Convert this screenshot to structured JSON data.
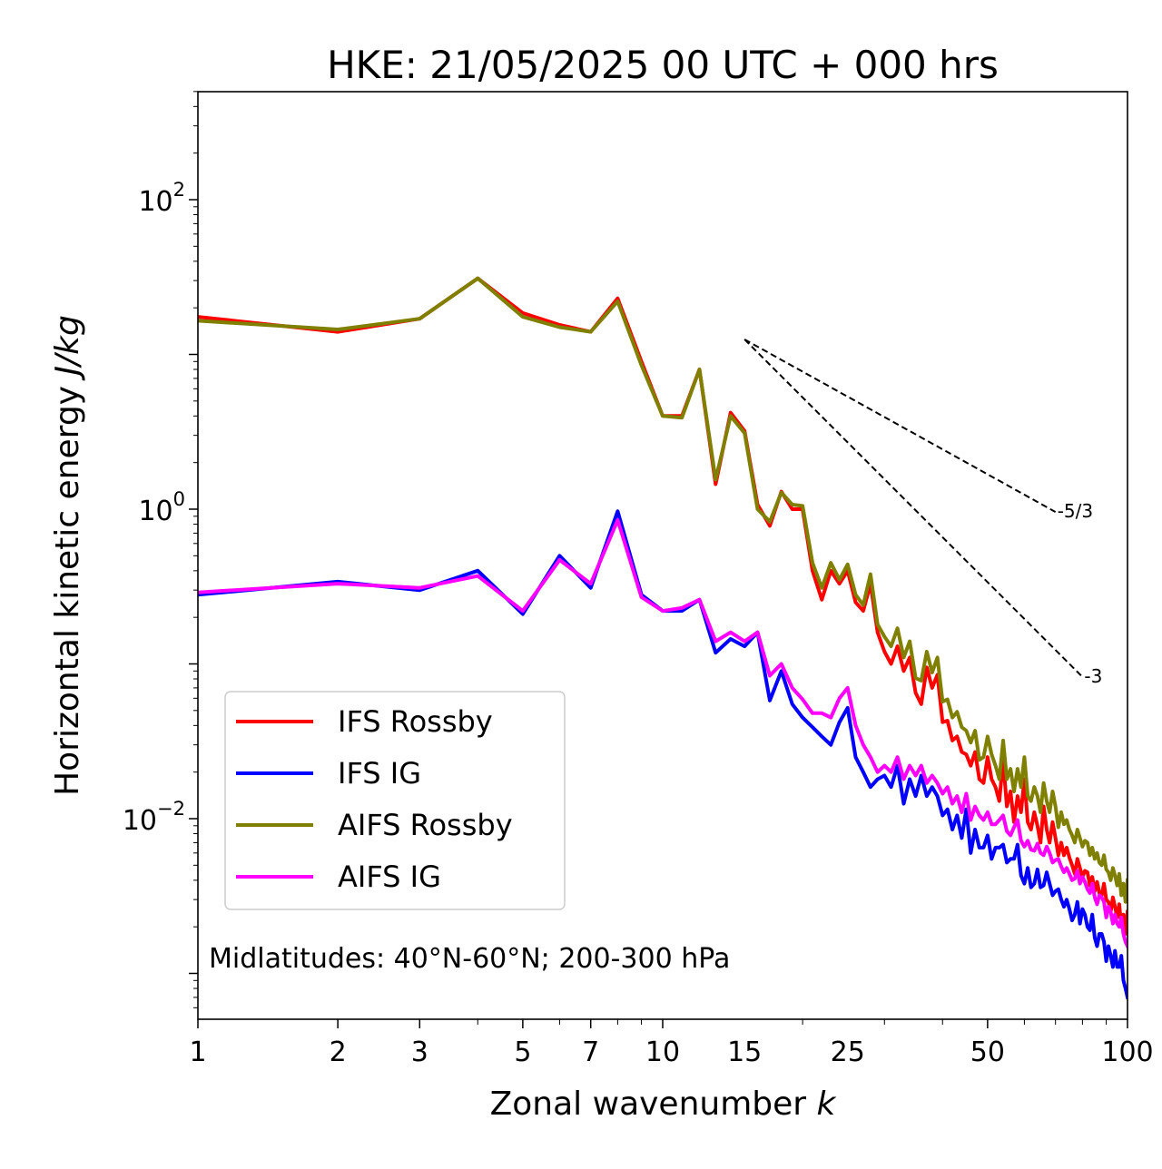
{
  "chart_data": {
    "type": "line",
    "title": "HKE: 21/05/2025 00 UTC + 000 hrs",
    "xlabel": "Zonal wavenumber",
    "xlabel_var": "k",
    "ylabel": "Horizontal kinetic energy",
    "ylabel_units": "J/kg",
    "xscale": "log",
    "yscale": "log",
    "xlim": [
      1,
      100
    ],
    "ylim": [
      0.0005,
      800
    ],
    "xticks": [
      {
        "value": 1,
        "label": "1"
      },
      {
        "value": 2,
        "label": "2"
      },
      {
        "value": 3,
        "label": "3"
      },
      {
        "value": 5,
        "label": "5"
      },
      {
        "value": 7,
        "label": "7"
      },
      {
        "value": 10,
        "label": "10"
      },
      {
        "value": 15,
        "label": "15"
      },
      {
        "value": 25,
        "label": "25"
      },
      {
        "value": 50,
        "label": "50"
      },
      {
        "value": 100,
        "label": "100"
      }
    ],
    "yticks": [
      {
        "value": 100,
        "base": "10",
        "exp": "2"
      },
      {
        "value": 1,
        "base": "10",
        "exp": "0"
      },
      {
        "value": 0.01,
        "base": "10",
        "exp": "−2"
      }
    ],
    "annotation": "Midlatitudes: 40°N-60°N; 200-300 hPa",
    "legend_position": "lower-left",
    "reference_lines": [
      {
        "label": "-5/3",
        "x0": 15,
        "y0": 12.5,
        "x1": 70,
        "slope": -1.6667
      },
      {
        "label": "-3",
        "x0": 15,
        "y0": 12.5,
        "x1": 80,
        "slope": -3
      }
    ],
    "x": [
      1,
      2,
      3,
      4,
      5,
      6,
      7,
      8,
      9,
      10,
      11,
      12,
      13,
      14,
      15,
      16,
      17,
      18,
      19,
      20,
      21,
      22,
      23,
      24,
      25,
      26,
      27,
      28,
      29,
      30,
      31,
      32,
      33,
      34,
      35,
      36,
      37,
      38,
      39,
      40,
      41,
      42,
      43,
      44,
      45,
      46,
      47,
      48,
      49,
      50,
      51,
      52,
      53,
      54,
      55,
      56,
      57,
      58,
      59,
      60,
      61,
      62,
      63,
      64,
      65,
      66,
      67,
      68,
      69,
      70,
      71,
      72,
      73,
      74,
      75,
      76,
      77,
      78,
      79,
      80,
      81,
      82,
      83,
      84,
      85,
      86,
      87,
      88,
      89,
      90,
      91,
      92,
      93,
      94,
      95,
      96,
      97,
      98,
      99,
      100
    ],
    "series": [
      {
        "name": "IFS Rossby",
        "color": "#ff0000",
        "values": [
          17.5,
          14.0,
          17.0,
          31.0,
          18.5,
          15.5,
          14.0,
          23.0,
          9.0,
          4.0,
          4.0,
          8.0,
          1.45,
          4.2,
          3.2,
          1.07,
          0.78,
          1.3,
          1.0,
          1.0,
          0.4,
          0.26,
          0.4,
          0.33,
          0.4,
          0.25,
          0.22,
          0.33,
          0.16,
          0.12,
          0.1,
          0.13,
          0.09,
          0.11,
          0.065,
          0.055,
          0.095,
          0.07,
          0.085,
          0.042,
          0.043,
          0.032,
          0.034,
          0.027,
          0.026,
          0.022,
          0.027,
          0.018,
          0.017,
          0.025,
          0.018,
          0.016,
          0.013,
          0.024,
          0.012,
          0.015,
          0.0095,
          0.014,
          0.011,
          0.018,
          0.0095,
          0.0085,
          0.011,
          0.009,
          0.007,
          0.012,
          0.0085,
          0.007,
          0.0095,
          0.0075,
          0.0058,
          0.007,
          0.0058,
          0.0065,
          0.0056,
          0.005,
          0.0044,
          0.0055,
          0.0048,
          0.0042,
          0.0046,
          0.0045,
          0.0037,
          0.0042,
          0.0034,
          0.0039,
          0.0033,
          0.0032,
          0.0038,
          0.003,
          0.0029,
          0.0025,
          0.0031,
          0.0027,
          0.0023,
          0.0028,
          0.002,
          0.0024,
          0.0018,
          0.0025
        ]
      },
      {
        "name": "IFS IG",
        "color": "#0000ff",
        "values": [
          0.28,
          0.34,
          0.3,
          0.4,
          0.21,
          0.5,
          0.31,
          0.97,
          0.28,
          0.22,
          0.22,
          0.26,
          0.118,
          0.145,
          0.13,
          0.16,
          0.058,
          0.09,
          0.055,
          0.045,
          0.039,
          0.034,
          0.03,
          0.042,
          0.052,
          0.025,
          0.02,
          0.016,
          0.018,
          0.019,
          0.016,
          0.022,
          0.0125,
          0.018,
          0.014,
          0.019,
          0.014,
          0.016,
          0.014,
          0.0105,
          0.0115,
          0.0085,
          0.0105,
          0.0075,
          0.0115,
          0.006,
          0.0085,
          0.0065,
          0.0065,
          0.0078,
          0.0055,
          0.0065,
          0.0065,
          0.0068,
          0.0052,
          0.0055,
          0.0055,
          0.0068,
          0.0043,
          0.0038,
          0.0048,
          0.0036,
          0.0038,
          0.0047,
          0.0036,
          0.0037,
          0.0045,
          0.0038,
          0.0032,
          0.0034,
          0.0035,
          0.003,
          0.0027,
          0.003,
          0.0026,
          0.0022,
          0.0024,
          0.0029,
          0.0021,
          0.0026,
          0.0024,
          0.002,
          0.0019,
          0.0024,
          0.0017,
          0.0015,
          0.0018,
          0.0018,
          0.0016,
          0.0012,
          0.0015,
          0.0013,
          0.0011,
          0.0014,
          0.0011,
          0.0011,
          0.0013,
          0.0009,
          0.0008,
          0.0007
        ]
      },
      {
        "name": "AIFS Rossby",
        "color": "#808000",
        "values": [
          16.5,
          14.5,
          17.0,
          31.0,
          17.5,
          15.0,
          14.0,
          22.0,
          8.5,
          4.0,
          3.9,
          8.0,
          1.55,
          4.0,
          3.1,
          1.0,
          0.83,
          1.28,
          1.07,
          1.05,
          0.45,
          0.31,
          0.45,
          0.35,
          0.44,
          0.28,
          0.24,
          0.38,
          0.18,
          0.15,
          0.13,
          0.17,
          0.11,
          0.14,
          0.081,
          0.078,
          0.12,
          0.088,
          0.11,
          0.057,
          0.059,
          0.045,
          0.049,
          0.039,
          0.037,
          0.031,
          0.037,
          0.024,
          0.025,
          0.034,
          0.026,
          0.022,
          0.018,
          0.032,
          0.018,
          0.021,
          0.015,
          0.021,
          0.016,
          0.025,
          0.014,
          0.013,
          0.016,
          0.014,
          0.011,
          0.017,
          0.013,
          0.011,
          0.015,
          0.012,
          0.0088,
          0.011,
          0.0092,
          0.0098,
          0.0085,
          0.0078,
          0.007,
          0.0085,
          0.0075,
          0.0066,
          0.0072,
          0.007,
          0.0058,
          0.0065,
          0.0055,
          0.006,
          0.0052,
          0.005,
          0.0058,
          0.0047,
          0.0045,
          0.004,
          0.0048,
          0.0043,
          0.0037,
          0.0044,
          0.0032,
          0.0038,
          0.0029,
          0.004
        ]
      },
      {
        "name": "AIFS IG",
        "color": "#ff00ff",
        "values": [
          0.29,
          0.33,
          0.31,
          0.37,
          0.22,
          0.47,
          0.33,
          0.85,
          0.27,
          0.22,
          0.23,
          0.26,
          0.14,
          0.16,
          0.14,
          0.16,
          0.084,
          0.1,
          0.07,
          0.059,
          0.048,
          0.048,
          0.045,
          0.06,
          0.07,
          0.04,
          0.03,
          0.025,
          0.02,
          0.022,
          0.02,
          0.025,
          0.018,
          0.022,
          0.019,
          0.022,
          0.017,
          0.019,
          0.017,
          0.0145,
          0.016,
          0.0125,
          0.014,
          0.011,
          0.0145,
          0.0098,
          0.012,
          0.0105,
          0.0098,
          0.011,
          0.0092,
          0.0092,
          0.0098,
          0.0105,
          0.0083,
          0.0078,
          0.0088,
          0.0098,
          0.0072,
          0.0066,
          0.0072,
          0.0063,
          0.0062,
          0.0069,
          0.006,
          0.0058,
          0.0066,
          0.006,
          0.0052,
          0.0054,
          0.0055,
          0.0049,
          0.0045,
          0.0048,
          0.0044,
          0.004,
          0.0041,
          0.0046,
          0.0038,
          0.0042,
          0.0039,
          0.0035,
          0.0033,
          0.0038,
          0.0031,
          0.0028,
          0.0032,
          0.0031,
          0.0029,
          0.0023,
          0.0027,
          0.0025,
          0.0021,
          0.0024,
          0.0021,
          0.002,
          0.0023,
          0.0018,
          0.0016,
          0.0015
        ]
      }
    ]
  }
}
